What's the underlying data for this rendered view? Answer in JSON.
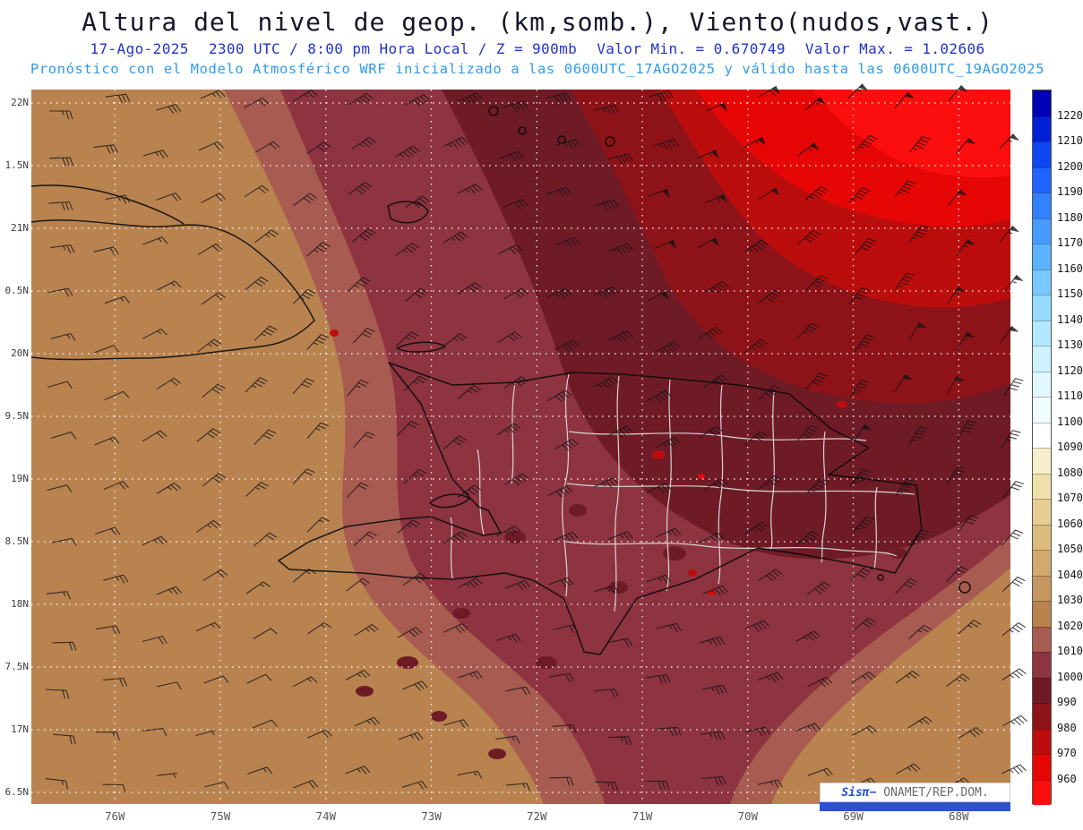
{
  "header": {
    "title": "Altura del nivel de geop. (km,somb.), Viento(nudos,vast.)",
    "line1": {
      "date": "17-Ago-2025",
      "time": "2300 UTC / 8:00 pm Hora Local / Z = 900mb",
      "min_label": "Valor Min. = 0.670749",
      "max_label": "Valor Max. = 1.02606"
    },
    "line2": "Pronóstico con el Modelo Atmosférico WRF inicializado a las 0600UTC_17AGO2025 y válido hasta las  0600UTC_19AGO2025"
  },
  "axes": {
    "lat_labels": [
      "22N",
      "1.5N",
      "21N",
      "0.5N",
      "20N",
      "9.5N",
      "19N",
      "8.5N",
      "18N",
      "7.5N",
      "17N",
      "6.5N"
    ],
    "lon_labels": [
      "76W",
      "75W",
      "74W",
      "73W",
      "72W",
      "71W",
      "70W",
      "69W",
      "68W"
    ]
  },
  "colorbar": {
    "labels": [
      "1220",
      "1210",
      "1200",
      "1190",
      "1180",
      "1170",
      "1160",
      "1150",
      "1140",
      "1130",
      "1120",
      "1110",
      "1100",
      "1090",
      "1080",
      "1070",
      "1060",
      "1050",
      "1040",
      "1030",
      "1020",
      "1010",
      "1000",
      "990",
      "980",
      "970",
      "960"
    ],
    "colors": [
      "#0000B4",
      "#0020D8",
      "#0E46F0",
      "#2064FF",
      "#3282FF",
      "#469BFF",
      "#5AB4FF",
      "#78C8FF",
      "#96DAFF",
      "#B4E8FF",
      "#CDF2FF",
      "#E1F8FF",
      "#F0FCFF",
      "#FFFFFF",
      "#F8F0CC",
      "#F0E0AA",
      "#E6CD92",
      "#DCBB7E",
      "#D2A96E",
      "#C69760",
      "#B98350",
      "#A85B50",
      "#8E3340",
      "#6F1B26",
      "#8E1318",
      "#BC0D0D",
      "#E60606",
      "#FC0E0E"
    ]
  },
  "branding": {
    "brand": "Sisπ",
    "separator": "− ",
    "org": "ONAMET/REP.DOM.",
    "brand_color": "#1F4FD8",
    "bar_color": "#2D52CC"
  },
  "chart_data": {
    "type": "heatmap",
    "title": "Altura del nivel de geop. (km,somb.), Viento(nudos,vast.)",
    "model": "WRF",
    "organization": "ONAMET/REP.DOM.",
    "level": "900mb",
    "date": "17-Ago-2025",
    "valid_time": "2300 UTC / 8:00 pm Hora Local",
    "initialized": "0600UTC_17AGO2025",
    "valid_until": "0600UTC_19AGO2025",
    "variable_shaded": "Altura del nivel de geopotencial (km, sombreado)",
    "variable_vector": "Viento (nudos, barbas)",
    "value_min_km": 0.670749,
    "value_max_km": 1.02606,
    "colorbar_levels_m": [
      1220,
      1210,
      1200,
      1190,
      1180,
      1170,
      1160,
      1150,
      1140,
      1130,
      1120,
      1110,
      1100,
      1090,
      1080,
      1070,
      1060,
      1050,
      1040,
      1030,
      1020,
      1010,
      1000,
      990,
      980,
      970,
      960
    ],
    "lon_range": [
      "76.5W",
      "67.5W"
    ],
    "lat_range": [
      "16.5N",
      "22.2N"
    ],
    "grid_interval": {
      "lon_deg": 1.0,
      "lat_deg": 0.5
    },
    "field_description": "Geopotential-height minimum (bright red, below 0.96 km) centered northeast of Hispaniola near 68.5W/22N; concentric red-to-maroon bands decrease outward; heights rise southwestward through dark maroon (0.99-1.00 km) and maroon (1.00-1.01 km) over Hispaniola to rosy brown (1.01-1.02 km) and tan (1.02-1.03 km) over eastern Cuba, western Haiti and the far south.",
    "wind_description": "Black wind barbs in knots; strongest winds (flags, 50+ kt) in the northeast red zone, weaker easterlies (10-20 kt) over the west and south."
  }
}
